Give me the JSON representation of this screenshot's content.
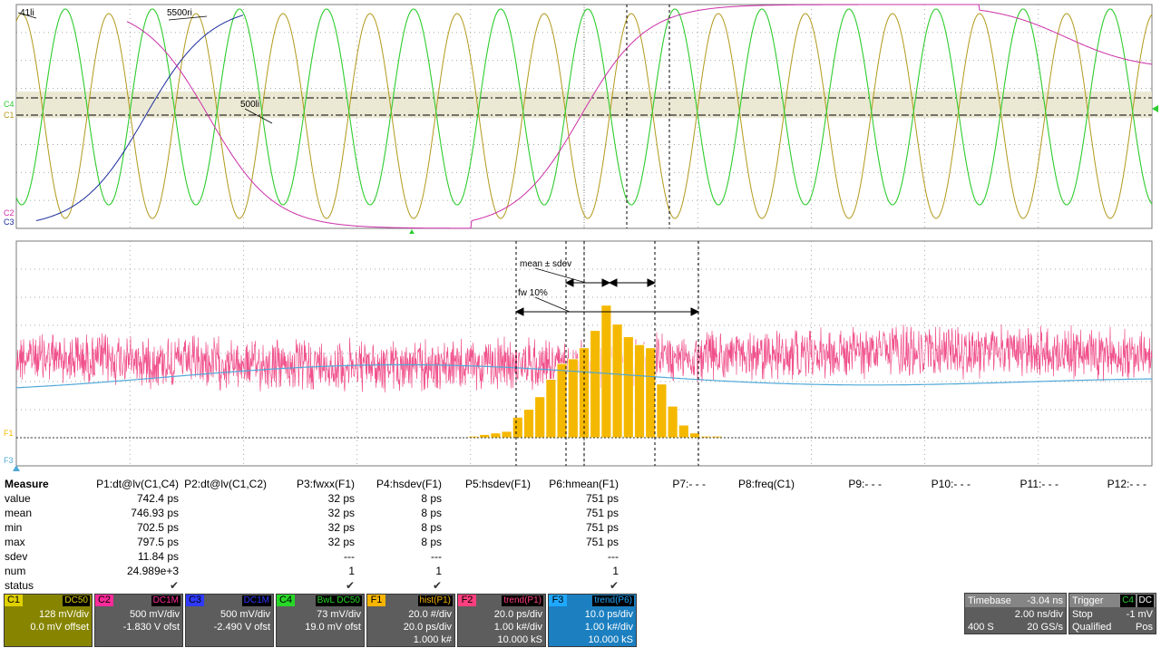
{
  "upper_grid": {
    "labels": {
      "m1": "41li",
      "m2": "5500ri",
      "m3": "500li",
      "c2": "C2",
      "c3": "C3",
      "c4": "C4",
      "c1": "C1"
    }
  },
  "lower_grid": {
    "labels": {
      "mean_sdev": "mean ± sdev",
      "fw10": "fw 10%",
      "f1": "F1",
      "f3": "F3"
    }
  },
  "measure": {
    "row_labels": [
      "Measure",
      "value",
      "mean",
      "min",
      "max",
      "sdev",
      "num",
      "status"
    ],
    "columns": [
      {
        "header": "P1:dt@lv(C1,C4)",
        "value": "742.4 ps",
        "mean": "746.93 ps",
        "min": "702.5 ps",
        "max": "797.5 ps",
        "sdev": "11.84 ps",
        "num": "24.989e+3",
        "status": "✔"
      },
      {
        "header": "P2:dt@lv(C1,C2)",
        "value": "",
        "mean": "",
        "min": "",
        "max": "",
        "sdev": "",
        "num": "",
        "status": ""
      },
      {
        "header": "P3:fwxx(F1)",
        "value": "32 ps",
        "mean": "32 ps",
        "min": "32 ps",
        "max": "32 ps",
        "sdev": "---",
        "num": "1",
        "status": "✔"
      },
      {
        "header": "P4:hsdev(F1)",
        "value": "8 ps",
        "mean": "8 ps",
        "min": "8 ps",
        "max": "8 ps",
        "sdev": "---",
        "num": "1",
        "status": "✔"
      },
      {
        "header": "P5:hsdev(F1)",
        "value": "",
        "mean": "",
        "min": "",
        "max": "",
        "sdev": "",
        "num": "",
        "status": ""
      },
      {
        "header": "P6:hmean(F1)",
        "value": "751 ps",
        "mean": "751 ps",
        "min": "751 ps",
        "max": "751 ps",
        "sdev": "---",
        "num": "1",
        "status": "✔"
      },
      {
        "header": "P7:- - -"
      },
      {
        "header": "P8:freq(C1)"
      },
      {
        "header": "P9:- - -"
      },
      {
        "header": "P10:- - -"
      },
      {
        "header": "P11:- - -"
      },
      {
        "header": "P12:- - -"
      }
    ]
  },
  "channels": [
    {
      "tag": "C1",
      "coupling": "DC50",
      "l1": "128 mV/div",
      "l2": "0.0 mV offset",
      "l3": "",
      "color": "#e0d000",
      "bg": "#878500"
    },
    {
      "tag": "C2",
      "coupling": "DC1M",
      "l1": "500 mV/div",
      "l2": "-1.830 V ofst",
      "l3": "",
      "color": "#ff2a9a",
      "bg": "#5d5d5d"
    },
    {
      "tag": "C3",
      "coupling": "DC1M",
      "l1": "500 mV/div",
      "l2": "-2.490 V ofst",
      "l3": "",
      "color": "#2f39ff",
      "bg": "#5d5d5d"
    },
    {
      "tag": "C4",
      "coupling": "BwL DC50",
      "l1": "73 mV/div",
      "l2": "19.0 mV ofst",
      "l3": "",
      "color": "#27d827",
      "bg": "#5d5d5d"
    },
    {
      "tag": "F1",
      "coupling": "hist(P1)",
      "l1": "20.0 #/div",
      "l2": "20.0 ps/div",
      "l3": "1.000 k#",
      "color": "#f7b500",
      "bg": "#5d5d5d"
    },
    {
      "tag": "F2",
      "coupling": "trend(P1)",
      "l1": "20.0 ps/div",
      "l2": "1.00 k#/div",
      "l3": "10.000 kS",
      "color": "#ff3f7f",
      "bg": "#5d5d5d"
    },
    {
      "tag": "F3",
      "coupling": "trend(P6)",
      "l1": "10.0 ps/div",
      "l2": "1.00 k#/div",
      "l3": "10.000 kS",
      "color": "#1fa8ff",
      "bg": "#1b7fc0"
    }
  ],
  "timebase": {
    "title": "Timebase",
    "offset": "-3.04 ns",
    "per_div": "2.00 ns/div",
    "samples": "400 S",
    "rate": "20 GS/s"
  },
  "trigger": {
    "title": "Trigger",
    "source": "C4",
    "coupling": "DC",
    "mode": "Stop",
    "level": "-1 mV",
    "state": "Qualified",
    "slope": "Pos"
  },
  "colors": {
    "c1": "#b29a1d",
    "c2": "#cc2fa8",
    "c3": "#1b2c9e",
    "c4": "#2ecc2e",
    "f1": "#f5b800",
    "f2": "#f0508a",
    "f3": "#4fa8d8"
  },
  "histogram": {
    "x": [
      -10,
      -9,
      -8,
      -7,
      -6,
      -5,
      -4,
      -3,
      -2,
      -1,
      0,
      1,
      2,
      3,
      4,
      5,
      6,
      7,
      8,
      9,
      10,
      11,
      12
    ],
    "counts": [
      1,
      2,
      3,
      4,
      13,
      18,
      26,
      37,
      47,
      50,
      57,
      68,
      84,
      72,
      64,
      59,
      57,
      34,
      20,
      8,
      3,
      1,
      1
    ]
  }
}
